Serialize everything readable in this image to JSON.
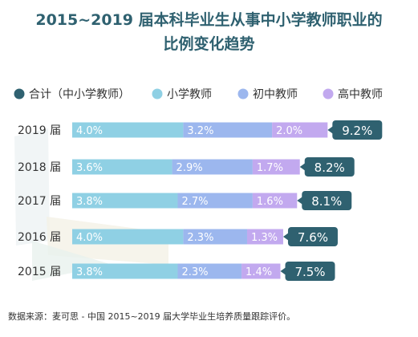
{
  "title_lines": [
    "2015~2019 届本科毕业生从事中小学教师职业的",
    "比例变化趋势"
  ],
  "source": "数据来源：麦可思 - 中国 2015~2019 届大学毕业生培养质量跟踪评价。",
  "chart_data": {
    "type": "bar",
    "stacked": true,
    "orientation": "horizontal",
    "categories": [
      "2019 届",
      "2018 届",
      "2017 届",
      "2016 届",
      "2015 届"
    ],
    "series": [
      {
        "name": "小学教师",
        "values": [
          4.0,
          3.6,
          3.8,
          4.0,
          3.8
        ],
        "labels": [
          "4.0%",
          "3.6%",
          "3.8%",
          "4.0%",
          "3.8%"
        ],
        "color": "#8fd0e4"
      },
      {
        "name": "初中教师",
        "values": [
          3.2,
          2.9,
          2.7,
          2.3,
          2.3
        ],
        "labels": [
          "3.2%",
          "2.9%",
          "2.7%",
          "2.3%",
          "2.3%"
        ],
        "color": "#9cb7ee"
      },
      {
        "name": "高中教师",
        "values": [
          2.0,
          1.7,
          1.6,
          1.3,
          1.4
        ],
        "labels": [
          "2.0%",
          "1.7%",
          "1.6%",
          "1.3%",
          "1.4%"
        ],
        "color": "#c2a9ef"
      }
    ],
    "totals": {
      "name": "合计（中小学教师）",
      "values": [
        9.2,
        8.2,
        8.1,
        7.6,
        7.5
      ],
      "labels": [
        "9.2%",
        "8.2%",
        "8.1%",
        "7.6%",
        "7.5%"
      ],
      "color": "#2f6170"
    },
    "legend_position": "top",
    "grid": false
  }
}
